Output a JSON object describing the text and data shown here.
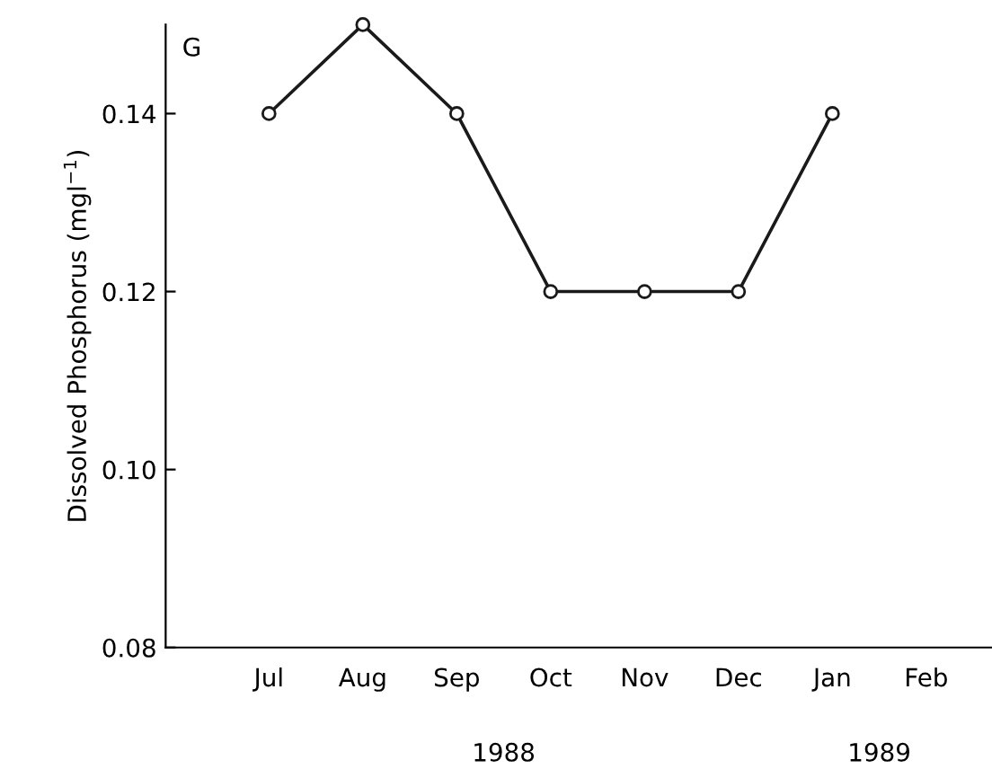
{
  "chart_data": {
    "type": "line",
    "ylabel": "Dissolved Phosphorus (mgl$^{−1}$)",
    "categories": [
      "Jul",
      "Aug",
      "Sep",
      "Oct",
      "Nov",
      "Dec",
      "Jan",
      "Feb"
    ],
    "series": [
      {
        "color": "#1a1a1a",
        "values": [
          0.14,
          0.15,
          0.14,
          0.12,
          0.12,
          0.12,
          0.14,
          null
        ]
      }
    ],
    "ylim": [
      0.08,
      0.15
    ],
    "yticks": [
      {
        "value": 0.08,
        "label": "0.08"
      },
      {
        "value": 0.1,
        "label": "0.10"
      },
      {
        "value": 0.12,
        "label": "0.12"
      },
      {
        "value": 0.14,
        "label": "0.14"
      }
    ],
    "annotations": [
      "G",
      "1988",
      "1989"
    ],
    "marker": "circle",
    "line_style": "solid",
    "grid": false,
    "legend": false
  }
}
